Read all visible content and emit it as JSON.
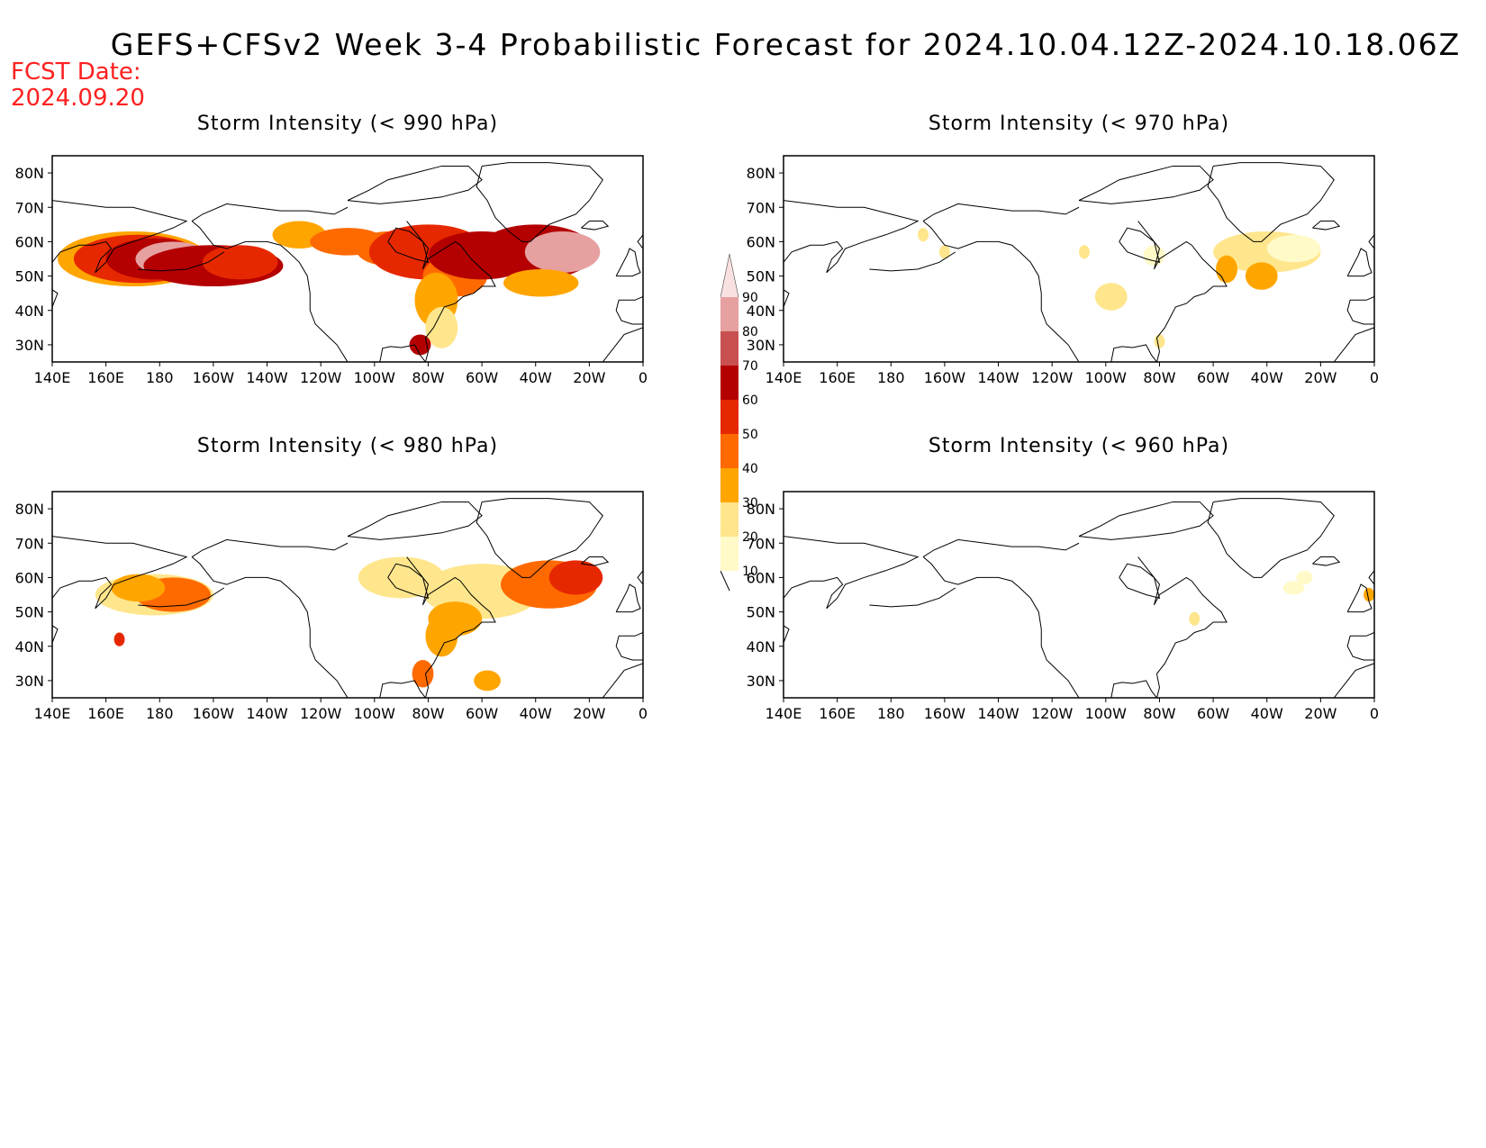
{
  "title": "GEFS+CFSv2 Week 3-4 Probabilistic Forecast for 2024.10.04.12Z-2024.10.18.06Z",
  "fcst_label": "FCST Date:",
  "fcst_date": "2024.09.20",
  "panels": [
    {
      "title": "Storm Intensity (< 990 hPa)",
      "level": "high"
    },
    {
      "title": "Storm Intensity (< 970 hPa)",
      "level": "low"
    },
    {
      "title": "Storm Intensity (< 980 hPa)",
      "level": "mid"
    },
    {
      "title": "Storm Intensity (< 960 hPa)",
      "level": "vlow"
    }
  ],
  "lat_labels": [
    "80N",
    "70N",
    "60N",
    "50N",
    "40N",
    "30N"
  ],
  "lon_labels": [
    "140E",
    "160E",
    "180",
    "160W",
    "140W",
    "120W",
    "100W",
    "80W",
    "60W",
    "40W",
    "20W",
    "0"
  ],
  "colorbar": {
    "labels": [
      "10",
      "20",
      "30",
      "40",
      "50",
      "60",
      "70",
      "80",
      "90"
    ],
    "colors": [
      "#fffac8",
      "#ffe68c",
      "#ffa500",
      "#ff6a00",
      "#e62800",
      "#b40000",
      "#c85050",
      "#e6a0a0",
      "#fae1e1"
    ]
  }
}
